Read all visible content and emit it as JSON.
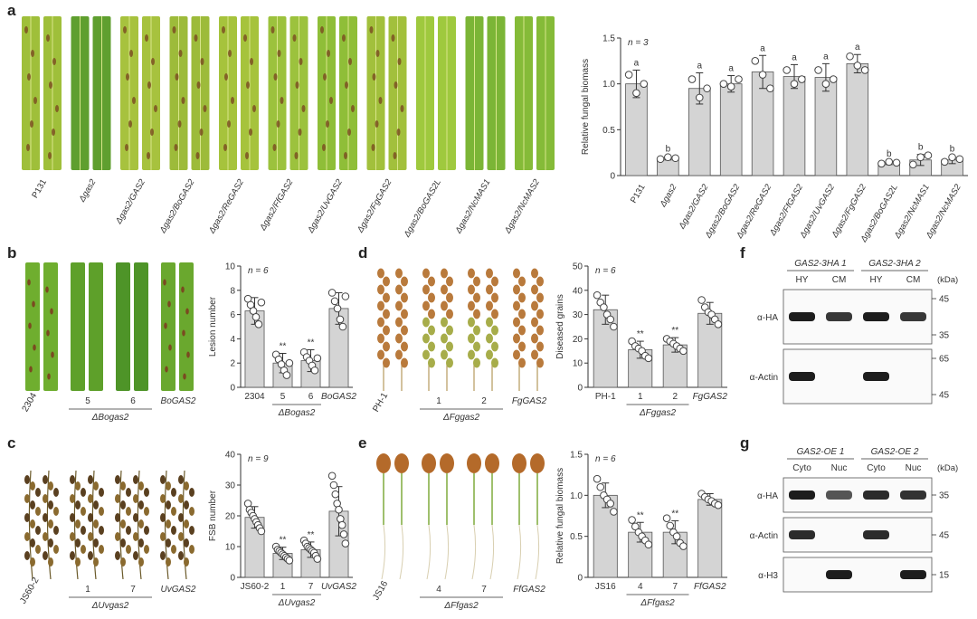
{
  "panels": {
    "a": {
      "letter": "a",
      "leaf_labels": [
        "P131",
        "Δgas2",
        "Δgas2/GAS2",
        "Δgas2/BoGAS2",
        "Δgas2/ReGAS2",
        "Δgas2/FfGAS2",
        "Δgas2/UvGAS2",
        "Δgas2/FgGAS2",
        "Δgas2/BoGAS2L",
        "Δgas2/NcMAS1",
        "Δgas2/NcMAS2"
      ],
      "leaf_colors": [
        "#9fbf3a",
        "#5f9f2f",
        "#a7c23e",
        "#9dbb3a",
        "#a6c33c",
        "#9cc23d",
        "#8fbe38",
        "#a2c03c",
        "#9fc93e",
        "#7bb536",
        "#85bb38"
      ]
    },
    "b": {
      "letter": "b",
      "image_labels": [
        "2304",
        "5",
        "6",
        "BoGAS2"
      ],
      "group_label": "ΔBogas2"
    },
    "c": {
      "letter": "c",
      "image_labels": [
        "JS60-2",
        "1",
        "7",
        "UvGAS2"
      ],
      "group_label": "ΔUvgas2"
    },
    "d": {
      "letter": "d",
      "image_labels": [
        "PH-1",
        "1",
        "2",
        "FgGAS2"
      ],
      "group_label": "ΔFggas2"
    },
    "e": {
      "letter": "e",
      "image_labels": [
        "JS16",
        "4",
        "7",
        "FfGAS2"
      ],
      "group_label": "ΔFfgas2"
    },
    "f": {
      "letter": "f",
      "group_labels": [
        "GAS2-3HA 1",
        "GAS2-3HA 2"
      ],
      "lane_labels": [
        "HY",
        "CM",
        "HY",
        "CM"
      ],
      "kda_label": "(kDa)",
      "rows": [
        {
          "label": "α-HA",
          "markers": [
            "45",
            "35"
          ],
          "bands": [
            1,
            0.8,
            1,
            0.8
          ]
        },
        {
          "label": "α-Actin",
          "markers": [
            "65",
            "45"
          ],
          "bands": [
            1,
            0,
            1,
            0
          ]
        }
      ]
    },
    "g": {
      "letter": "g",
      "group_labels": [
        "GAS2-OE 1",
        "GAS2-OE 2"
      ],
      "lane_labels": [
        "Cyto",
        "Nuc",
        "Cyto",
        "Nuc"
      ],
      "kda_label": "(kDa)",
      "rows": [
        {
          "label": "α-HA",
          "markers": [
            "35"
          ],
          "bands": [
            1,
            0.6,
            0.9,
            0.85
          ]
        },
        {
          "label": "α-Actin",
          "markers": [
            "45"
          ],
          "bands": [
            0.9,
            0,
            0.9,
            0
          ]
        },
        {
          "label": "α-H3",
          "markers": [
            "15"
          ],
          "bands": [
            0,
            1,
            0,
            1
          ]
        }
      ]
    }
  },
  "chart_data": [
    {
      "id": "a",
      "type": "bar",
      "ylabel": "Relative fungal biomass",
      "n_label": "n = 3",
      "ylim": [
        0,
        1.5
      ],
      "yticks": [
        "0",
        "0.5",
        "1.0",
        "1.5"
      ],
      "categories": [
        "P131",
        "Δgas2",
        "Δgas2/GAS2",
        "Δgas2/BoGAS2",
        "Δgas2/ReGAS2",
        "Δgas2/FfGAS2",
        "Δgas2/UvGAS2",
        "Δgas2/FgGAS2",
        "Δgas2/BoGAS2L",
        "Δgas2/NcMAS1",
        "Δgas2/NcMAS2"
      ],
      "values": [
        1.0,
        0.19,
        0.95,
        1.0,
        1.13,
        1.08,
        1.07,
        1.22,
        0.14,
        0.17,
        0.17
      ],
      "errors": [
        0.15,
        0.02,
        0.17,
        0.09,
        0.18,
        0.13,
        0.15,
        0.1,
        0.02,
        0.06,
        0.04
      ],
      "points": [
        [
          1.1,
          0.9,
          1.0
        ],
        [
          0.18,
          0.2,
          0.19
        ],
        [
          1.05,
          0.85,
          0.95
        ],
        [
          1.0,
          0.97,
          1.05
        ],
        [
          1.25,
          1.1,
          0.95
        ],
        [
          1.15,
          1.0,
          1.05
        ],
        [
          1.15,
          1.0,
          1.05
        ],
        [
          1.3,
          1.2,
          1.15
        ],
        [
          0.13,
          0.15,
          0.14
        ],
        [
          0.12,
          0.2,
          0.22
        ],
        [
          0.15,
          0.2,
          0.18
        ]
      ],
      "annotations": [
        "a",
        "b",
        "a",
        "a",
        "a",
        "a",
        "a",
        "a",
        "b",
        "b",
        "b"
      ]
    },
    {
      "id": "b",
      "type": "bar",
      "ylabel": "Lesion number",
      "n_label": "n = 6",
      "ylim": [
        0,
        10
      ],
      "yticks": [
        "0",
        "2",
        "4",
        "6",
        "8",
        "10"
      ],
      "categories": [
        "2304",
        "5",
        "6",
        "BoGAS2"
      ],
      "group_label": "ΔBogas2",
      "values": [
        6.3,
        2.0,
        2.2,
        6.5
      ],
      "errors": [
        1.1,
        0.8,
        0.9,
        1.3
      ],
      "points": [
        [
          7.3,
          6.8,
          6.3,
          5.8,
          5.2,
          7.0
        ],
        [
          2.7,
          2.3,
          1.9,
          1.4,
          1.0,
          2.0
        ],
        [
          2.9,
          2.5,
          2.2,
          1.8,
          1.4,
          2.4
        ],
        [
          7.8,
          7.1,
          6.5,
          5.6,
          5.0,
          7.5
        ]
      ],
      "annotations": [
        "",
        "**",
        "**",
        ""
      ]
    },
    {
      "id": "c",
      "type": "bar",
      "ylabel": "FSB number",
      "n_label": "n = 9",
      "ylim": [
        0,
        40
      ],
      "yticks": [
        "0",
        "10",
        "20",
        "30",
        "40"
      ],
      "categories": [
        "JS60-2",
        "1",
        "7",
        "UvGAS2"
      ],
      "group_label": "ΔUvgas2",
      "values": [
        19.5,
        7.8,
        9.0,
        21.5
      ],
      "errors": [
        3.5,
        2.0,
        2.5,
        8.0
      ],
      "points": [
        [
          24,
          22,
          21,
          20,
          19,
          18,
          17,
          16,
          15
        ],
        [
          10,
          9,
          8.5,
          8,
          7.5,
          7,
          6.5,
          6,
          5.5
        ],
        [
          12,
          11,
          10,
          9.5,
          9,
          8.5,
          8,
          7,
          6
        ],
        [
          33,
          30,
          27,
          24,
          22,
          19,
          17,
          14,
          11
        ]
      ],
      "annotations": [
        "",
        "**",
        "**",
        ""
      ]
    },
    {
      "id": "d",
      "type": "bar",
      "ylabel": "Diseased grains",
      "n_label": "n = 6",
      "ylim": [
        0,
        50
      ],
      "yticks": [
        "0",
        "10",
        "20",
        "30",
        "40",
        "50"
      ],
      "categories": [
        "PH-1",
        "1",
        "2",
        "FgGAS2"
      ],
      "group_label": "ΔFggas2",
      "values": [
        32.0,
        15.5,
        17.5,
        30.5
      ],
      "errors": [
        6.0,
        3.5,
        3.0,
        4.5
      ],
      "points": [
        [
          38,
          35,
          33,
          30,
          28,
          25
        ],
        [
          19,
          17,
          16,
          15,
          13,
          12
        ],
        [
          20,
          19,
          18,
          17,
          16,
          15
        ],
        [
          36,
          33,
          31,
          30,
          28,
          26
        ]
      ],
      "annotations": [
        "",
        "**",
        "**",
        ""
      ]
    },
    {
      "id": "e",
      "type": "bar",
      "ylabel": "Relative fungal biomass",
      "n_label": "n = 6",
      "ylim": [
        0,
        1.5
      ],
      "yticks": [
        "0",
        "0.5",
        "1.0",
        "1.5"
      ],
      "categories": [
        "JS16",
        "4",
        "7",
        "FfGAS2"
      ],
      "group_label": "ΔFfgas2",
      "values": [
        1.0,
        0.55,
        0.55,
        0.95
      ],
      "errors": [
        0.15,
        0.12,
        0.14,
        0.07
      ],
      "points": [
        [
          1.2,
          1.1,
          1.0,
          0.95,
          0.9,
          0.8
        ],
        [
          0.7,
          0.62,
          0.55,
          0.5,
          0.45,
          0.4
        ],
        [
          0.72,
          0.63,
          0.55,
          0.5,
          0.42,
          0.38
        ],
        [
          1.02,
          0.98,
          0.95,
          0.93,
          0.9,
          0.88
        ]
      ],
      "annotations": [
        "",
        "**",
        "**",
        ""
      ]
    }
  ]
}
